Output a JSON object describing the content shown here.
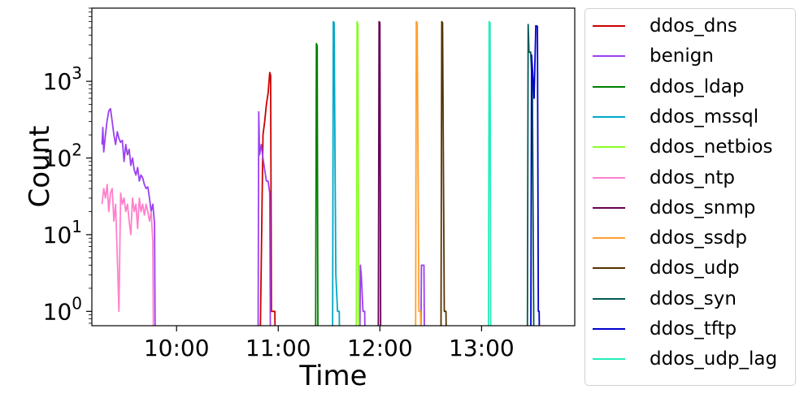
{
  "chart_data": {
    "type": "line",
    "title": "",
    "xlabel": "Time",
    "ylabel": "Count",
    "yscale": "log",
    "ylim": [
      0.65,
      9000
    ],
    "xlim": [
      "09:10",
      "13:55"
    ],
    "x_ticks": [
      "10:00",
      "11:00",
      "12:00",
      "13:00"
    ],
    "y_ticks": [
      {
        "base": "10",
        "exp": "0",
        "value": 1
      },
      {
        "base": "10",
        "exp": "1",
        "value": 10
      },
      {
        "base": "10",
        "exp": "2",
        "value": 100
      },
      {
        "base": "10",
        "exp": "3",
        "value": 1000
      }
    ],
    "grid": false,
    "legend_position": "outside-right",
    "series": [
      {
        "name": "ddos_dns",
        "color": "#cc0000",
        "points": [
          [
            "10:49",
            0.1
          ],
          [
            "10:51",
            200
          ],
          [
            "10:52",
            300
          ],
          [
            "10:53",
            500
          ],
          [
            "10:54",
            700
          ],
          [
            "10:55",
            1300
          ],
          [
            "10:55.5",
            1200
          ],
          [
            "10:56",
            1
          ],
          [
            "10:58",
            1
          ],
          [
            "10:58.5",
            0.1
          ]
        ]
      },
      {
        "name": "benign",
        "color": "#9b40f0",
        "points": [
          [
            "09:16",
            150
          ],
          [
            "09:16.5",
            250
          ],
          [
            "09:17",
            120
          ],
          [
            "09:18",
            200
          ],
          [
            "09:19",
            310
          ],
          [
            "09:20",
            410
          ],
          [
            "09:21",
            440
          ],
          [
            "09:22",
            300
          ],
          [
            "09:23",
            200
          ],
          [
            "09:24",
            150
          ],
          [
            "09:25",
            220
          ],
          [
            "09:26",
            180
          ],
          [
            "09:27",
            160
          ],
          [
            "09:28",
            170
          ],
          [
            "09:29",
            90
          ],
          [
            "09:30",
            150
          ],
          [
            "09:31",
            110
          ],
          [
            "09:32",
            130
          ],
          [
            "09:33",
            80
          ],
          [
            "09:34",
            100
          ],
          [
            "09:35",
            70
          ],
          [
            "09:36",
            60
          ],
          [
            "09:37",
            75
          ],
          [
            "09:38",
            50
          ],
          [
            "09:39",
            60
          ],
          [
            "09:40",
            55
          ],
          [
            "09:41",
            45
          ],
          [
            "09:42",
            40
          ],
          [
            "09:43",
            42
          ],
          [
            "09:44",
            30
          ],
          [
            "09:45",
            20
          ],
          [
            "09:46",
            25
          ],
          [
            "09:47",
            14
          ],
          [
            "09:47.5",
            0.1
          ],
          [
            "10:48",
            0.1
          ],
          [
            "10:48.5",
            400
          ],
          [
            "10:49",
            110
          ],
          [
            "10:50",
            150
          ],
          [
            "10:51",
            100
          ],
          [
            "10:52",
            70
          ],
          [
            "10:53",
            50
          ],
          [
            "10:54",
            50
          ],
          [
            "10:55",
            35
          ],
          [
            "10:55.5",
            0.1
          ],
          [
            "11:48",
            0.1
          ],
          [
            "11:48.5",
            4
          ],
          [
            "11:49",
            3
          ],
          [
            "11:50",
            1
          ],
          [
            "11:51",
            1
          ],
          [
            "11:51.5",
            0.1
          ],
          [
            "12:24",
            0.1
          ],
          [
            "12:24.5",
            4
          ],
          [
            "12:26",
            4
          ],
          [
            "12:26.5",
            0.1
          ]
        ]
      },
      {
        "name": "ddos_ldap",
        "color": "#008000",
        "points": [
          [
            "11:22",
            0.1
          ],
          [
            "11:22.5",
            3100
          ],
          [
            "11:23",
            2900
          ],
          [
            "11:23.5",
            0.1
          ]
        ]
      },
      {
        "name": "ddos_mssql",
        "color": "#00a8c8",
        "points": [
          [
            "11:32",
            0.1
          ],
          [
            "11:32.5",
            6000
          ],
          [
            "11:33",
            5800
          ],
          [
            "11:34",
            3
          ],
          [
            "11:35",
            1
          ],
          [
            "11:36",
            1
          ],
          [
            "11:36.5",
            0.1
          ]
        ]
      },
      {
        "name": "ddos_netbios",
        "color": "#88ff22",
        "points": [
          [
            "11:46",
            0.1
          ],
          [
            "11:46.5",
            6000
          ],
          [
            "11:47",
            5500
          ],
          [
            "11:47.5",
            1
          ],
          [
            "11:48",
            0.1
          ]
        ]
      },
      {
        "name": "ddos_ntp",
        "color": "#ff80cc",
        "points": [
          [
            "09:16",
            25
          ],
          [
            "09:17",
            40
          ],
          [
            "09:18",
            30
          ],
          [
            "09:19",
            45
          ],
          [
            "09:20",
            20
          ],
          [
            "09:21",
            35
          ],
          [
            "09:22",
            40
          ],
          [
            "09:23",
            15
          ],
          [
            "09:24",
            25
          ],
          [
            "09:25",
            5
          ],
          [
            "09:26",
            1
          ],
          [
            "09:27",
            35
          ],
          [
            "09:28",
            25
          ],
          [
            "09:29",
            30
          ],
          [
            "09:30",
            20
          ],
          [
            "09:31",
            25
          ],
          [
            "09:32",
            15
          ],
          [
            "09:33",
            10
          ],
          [
            "09:34",
            30
          ],
          [
            "09:35",
            20
          ],
          [
            "09:36",
            25
          ],
          [
            "09:37",
            12
          ],
          [
            "09:38",
            30
          ],
          [
            "09:39",
            20
          ],
          [
            "09:40",
            25
          ],
          [
            "09:41",
            18
          ],
          [
            "09:42",
            25
          ],
          [
            "09:43",
            20
          ],
          [
            "09:44",
            15
          ],
          [
            "09:45",
            20
          ],
          [
            "09:46",
            8
          ],
          [
            "09:46.5",
            0.1
          ]
        ]
      },
      {
        "name": "ddos_snmp",
        "color": "#660055",
        "points": [
          [
            "11:59",
            0.1
          ],
          [
            "11:59.5",
            6000
          ],
          [
            "12:00",
            5800
          ],
          [
            "12:00.5",
            0.1
          ]
        ]
      },
      {
        "name": "ddos_ssdp",
        "color": "#ffa030",
        "points": [
          [
            "12:21",
            0.1
          ],
          [
            "12:21.5",
            6000
          ],
          [
            "12:22",
            5800
          ],
          [
            "12:23",
            1
          ],
          [
            "12:24",
            1
          ],
          [
            "12:24.5",
            0.1
          ]
        ]
      },
      {
        "name": "ddos_udp",
        "color": "#553300",
        "points": [
          [
            "12:36",
            0.1
          ],
          [
            "12:36.5",
            6000
          ],
          [
            "12:37",
            5800
          ],
          [
            "12:38",
            1
          ],
          [
            "12:39",
            1
          ],
          [
            "12:39.5",
            0.1
          ]
        ]
      },
      {
        "name": "ddos_syn",
        "color": "#005a55",
        "points": [
          [
            "13:27",
            0.1
          ],
          [
            "13:27.5",
            5500
          ],
          [
            "13:28",
            2400
          ],
          [
            "13:29",
            2400
          ],
          [
            "13:30",
            800
          ],
          [
            "13:31",
            0.1
          ]
        ]
      },
      {
        "name": "ddos_tftp",
        "color": "#0000cc",
        "points": [
          [
            "13:29",
            0.1
          ],
          [
            "13:29.5",
            2200
          ],
          [
            "13:30",
            1500
          ],
          [
            "13:31",
            600
          ],
          [
            "13:32",
            5300
          ],
          [
            "13:33",
            5200
          ],
          [
            "13:33.5",
            1
          ],
          [
            "13:34",
            1
          ],
          [
            "13:34.5",
            0.1
          ]
        ]
      },
      {
        "name": "ddos_udp_lag",
        "color": "#22eebb",
        "points": [
          [
            "13:04",
            0.1
          ],
          [
            "13:04.5",
            6000
          ],
          [
            "13:05",
            5800
          ],
          [
            "13:05.5",
            0.1
          ]
        ]
      }
    ]
  }
}
